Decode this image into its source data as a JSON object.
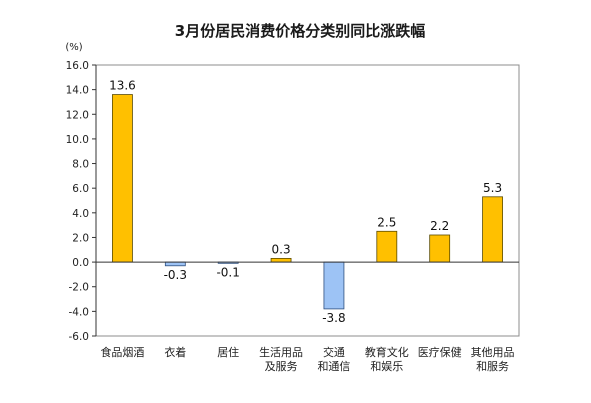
{
  "chart_data": {
    "type": "bar",
    "title": "3月份居民消费价格分类别同比涨跌幅",
    "unit": "(%)",
    "ylim": [
      -6.0,
      16.0
    ],
    "yticks": [
      "16.0",
      "14.0",
      "12.0",
      "10.0",
      "8.0",
      "6.0",
      "4.0",
      "2.0",
      "0.0",
      "-2.0",
      "-4.0",
      "-6.0"
    ],
    "categories": [
      [
        "食品烟酒"
      ],
      [
        "衣着"
      ],
      [
        "居住"
      ],
      [
        "生活用品",
        "及服务"
      ],
      [
        "交通",
        "和通信"
      ],
      [
        "教育文化",
        "和娱乐"
      ],
      [
        "医疗保健"
      ],
      [
        "其他用品",
        "和服务"
      ]
    ],
    "values": [
      13.6,
      -0.3,
      -0.1,
      0.3,
      -3.8,
      2.5,
      2.2,
      5.3
    ],
    "value_labels": [
      "13.6",
      "-0.3",
      "-0.1",
      "0.3",
      "-3.8",
      "2.5",
      "2.2",
      "5.3"
    ],
    "grid": false,
    "colors": {
      "positive_fill": "#FFC000",
      "positive_stroke": "#5a4a00",
      "negative_fill": "#9DC3F5",
      "negative_stroke": "#2f4f7f",
      "axis": "#333333",
      "frame": "#8c8c8c"
    }
  }
}
